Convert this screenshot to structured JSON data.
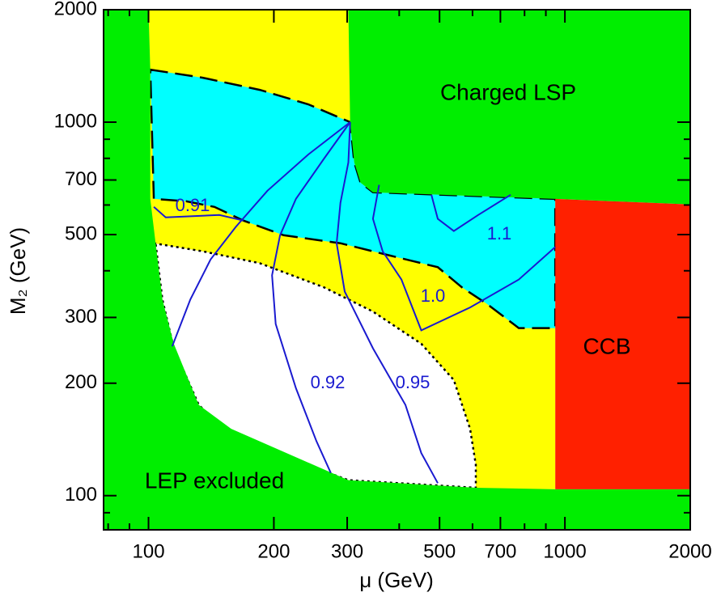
{
  "chart_data": {
    "type": "region",
    "xlabel": "μ (GeV)",
    "ylabel": "M₂ (GeV)",
    "xscale": "log",
    "yscale": "log",
    "xlim": [
      78,
      2000
    ],
    "ylim": [
      81,
      2000
    ],
    "xticks": [
      100,
      200,
      300,
      500,
      700,
      1000,
      2000
    ],
    "yticks": [
      100,
      200,
      300,
      500,
      700,
      1000,
      2000
    ],
    "xminorticks": [
      80,
      90,
      400,
      600,
      800,
      900
    ],
    "yminorticks": [
      90,
      400,
      600,
      800,
      900
    ],
    "regions": [
      {
        "color": "#ffff00",
        "x": [
          100,
          948,
          948,
          100
        ],
        "y": [
          2000,
          2000,
          104,
          104
        ]
      },
      {
        "color": "#00ffff",
        "border": "dashed",
        "x": [
          101,
          135,
          185,
          242,
          305,
          312,
          323,
          346,
          948,
          948,
          775,
          648,
          566,
          495,
          378,
          289,
          211,
          169,
          144,
          123,
          103
        ],
        "y": [
          1382,
          1315,
          1220,
          1116,
          1000,
          780,
          689,
          649,
          623,
          281,
          281,
          327,
          361,
          409,
          440,
          474,
          498,
          545,
          593,
          614,
          623
        ]
      },
      {
        "color": "#ffffff",
        "border": "dotted",
        "x": [
          103,
          135,
          185,
          264,
          346,
          452,
          541,
          592,
          611,
          611,
          302,
          158,
          132,
          115,
          108,
          104
        ],
        "y": [
          474,
          451,
          419,
          361,
          311,
          255,
          204,
          151,
          121,
          105,
          110,
          144,
          175,
          248,
          335,
          474
        ]
      },
      {
        "name": "LEP excluded",
        "color": "#00ee00",
        "x": [
          78,
          78,
          100,
          101,
          101,
          104,
          108,
          115,
          132,
          158,
          302,
          611,
          948,
          2000,
          2000
        ],
        "y": [
          80,
          2000,
          2000,
          1382,
          623,
          474,
          335,
          255,
          175,
          151,
          110,
          105,
          104,
          104,
          80
        ]
      },
      {
        "name": "Charged LSP",
        "color": "#00ee00",
        "x": [
          302,
          2000,
          2000,
          948,
          346,
          323,
          312,
          305
        ],
        "y": [
          2000,
          2000,
          602,
          623,
          649,
          689,
          780,
          1000
        ]
      },
      {
        "name": "CCB",
        "color": "#ff2000",
        "x": [
          948,
          2000,
          2000,
          948
        ],
        "y": [
          623,
          602,
          104,
          104
        ]
      }
    ],
    "contour_color": "#1a1ad0",
    "contours": [
      {
        "name": "0.91",
        "x": [
          103,
          110,
          148,
          169,
          null,
          305,
          242,
          193,
          162,
          141,
          126,
          114
        ],
        "y": [
          593,
          556,
          564,
          545,
          null,
          1000,
          819,
          655,
          524,
          429,
          335,
          251
        ]
      },
      {
        "name": "0.92",
        "x": [
          305,
          264,
          226,
          207,
          198,
          202,
          226,
          253,
          274
        ],
        "y": [
          1000,
          799,
          623,
          498,
          389,
          288,
          194,
          140,
          115
        ]
      },
      {
        "name": "0.95",
        "x": [
          305,
          302,
          289,
          283,
          296,
          346,
          414,
          452,
          495
        ],
        "y": [
          1000,
          780,
          608,
          474,
          352,
          248,
          175,
          130,
          108
        ]
      },
      {
        "name": "1.0",
        "x": [
          358,
          346,
          365,
          405,
          452,
          592,
          775,
          948
        ],
        "y": [
          679,
          551,
          451,
          379,
          277,
          319,
          379,
          463
        ]
      },
      {
        "name": "1.1",
        "x": [
          478,
          495,
          541,
          619,
          741
        ],
        "y": [
          639,
          551,
          511,
          564,
          639
        ]
      }
    ]
  }
}
